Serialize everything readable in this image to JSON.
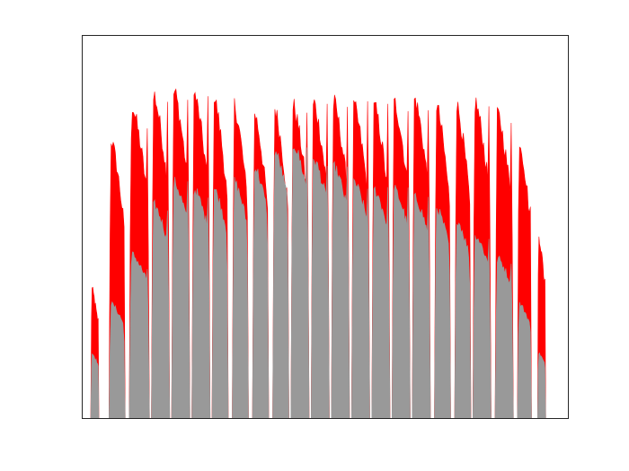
{
  "chart_data": {
    "type": "area",
    "title": "",
    "xlabel": "",
    "ylabel": "",
    "xlim": [
      0,
      24
    ],
    "ylim": [
      0,
      1
    ],
    "grid": false,
    "legend": "none",
    "x_ticks": [],
    "y_ticks": [],
    "colors": {
      "upper": "#ff0000",
      "lower": "#999999",
      "frame": "#262626",
      "background": "#ffffff"
    },
    "series": [
      {
        "role": "upper",
        "color": "#ff0000",
        "bursts": [
          {
            "start": 0.4,
            "end": 0.8,
            "peak": 0.34
          },
          {
            "start": 1.3,
            "end": 2.1,
            "peak": 0.73
          },
          {
            "start": 2.3,
            "end": 3.3,
            "peak": 0.82
          },
          {
            "start": 3.4,
            "end": 4.3,
            "peak": 0.85
          },
          {
            "start": 4.4,
            "end": 5.3,
            "peak": 0.86
          },
          {
            "start": 5.4,
            "end": 6.3,
            "peak": 0.85
          },
          {
            "start": 6.4,
            "end": 7.2,
            "peak": 0.84
          },
          {
            "start": 7.4,
            "end": 8.2,
            "peak": 0.82
          },
          {
            "start": 8.4,
            "end": 9.2,
            "peak": 0.8
          },
          {
            "start": 9.4,
            "end": 10.2,
            "peak": 0.81
          },
          {
            "start": 10.3,
            "end": 11.2,
            "peak": 0.82
          },
          {
            "start": 11.3,
            "end": 12.2,
            "peak": 0.83
          },
          {
            "start": 12.3,
            "end": 13.2,
            "peak": 0.83
          },
          {
            "start": 13.3,
            "end": 14.2,
            "peak": 0.82
          },
          {
            "start": 14.3,
            "end": 15.2,
            "peak": 0.82
          },
          {
            "start": 15.3,
            "end": 16.2,
            "peak": 0.83
          },
          {
            "start": 16.3,
            "end": 17.2,
            "peak": 0.84
          },
          {
            "start": 17.4,
            "end": 18.2,
            "peak": 0.82
          },
          {
            "start": 18.4,
            "end": 19.2,
            "peak": 0.82
          },
          {
            "start": 19.3,
            "end": 20.2,
            "peak": 0.83
          },
          {
            "start": 20.4,
            "end": 21.3,
            "peak": 0.8
          },
          {
            "start": 21.5,
            "end": 22.2,
            "peak": 0.73
          },
          {
            "start": 22.5,
            "end": 22.9,
            "peak": 0.48
          }
        ]
      },
      {
        "role": "lower",
        "color": "#999999",
        "bursts": [
          {
            "start": 0.4,
            "end": 0.8,
            "peak": 0.17
          },
          {
            "start": 1.3,
            "end": 2.1,
            "peak": 0.3
          },
          {
            "start": 2.3,
            "end": 3.3,
            "peak": 0.43
          },
          {
            "start": 3.4,
            "end": 4.3,
            "peak": 0.56
          },
          {
            "start": 4.4,
            "end": 5.3,
            "peak": 0.62
          },
          {
            "start": 5.4,
            "end": 6.3,
            "peak": 0.6
          },
          {
            "start": 6.4,
            "end": 7.2,
            "peak": 0.6
          },
          {
            "start": 7.4,
            "end": 8.2,
            "peak": 0.62
          },
          {
            "start": 8.4,
            "end": 9.2,
            "peak": 0.66
          },
          {
            "start": 9.4,
            "end": 10.2,
            "peak": 0.7
          },
          {
            "start": 10.3,
            "end": 11.2,
            "peak": 0.72
          },
          {
            "start": 11.3,
            "end": 12.2,
            "peak": 0.68
          },
          {
            "start": 12.3,
            "end": 13.2,
            "peak": 0.66
          },
          {
            "start": 13.3,
            "end": 14.2,
            "peak": 0.62
          },
          {
            "start": 14.3,
            "end": 15.2,
            "peak": 0.6
          },
          {
            "start": 15.3,
            "end": 16.2,
            "peak": 0.6
          },
          {
            "start": 16.3,
            "end": 17.2,
            "peak": 0.58
          },
          {
            "start": 17.4,
            "end": 18.2,
            "peak": 0.55
          },
          {
            "start": 18.4,
            "end": 19.2,
            "peak": 0.52
          },
          {
            "start": 19.3,
            "end": 20.2,
            "peak": 0.48
          },
          {
            "start": 20.4,
            "end": 21.3,
            "peak": 0.42
          },
          {
            "start": 21.5,
            "end": 22.2,
            "peak": 0.3
          },
          {
            "start": 22.5,
            "end": 22.9,
            "peak": 0.17
          }
        ]
      }
    ]
  }
}
